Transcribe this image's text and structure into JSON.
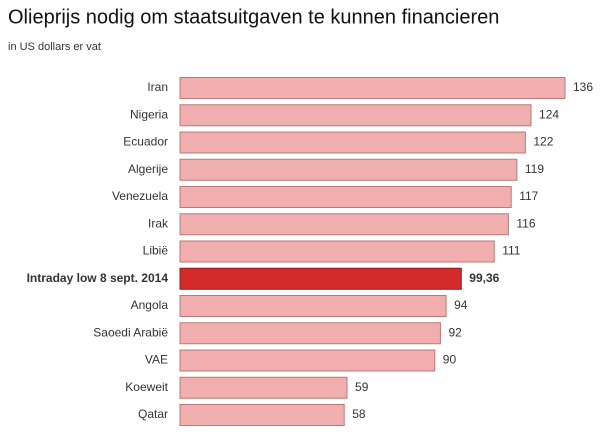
{
  "chart_data": {
    "type": "bar",
    "orientation": "horizontal",
    "title": "Olieprijs nodig om staatsuitgaven te kunnen financieren",
    "subtitle": "in US dollars er vat",
    "categories": [
      "Iran",
      "Nigeria",
      "Ecuador",
      "Algerije",
      "Venezuela",
      "Irak",
      "Libië",
      "Intraday low 8 sept. 2014",
      "Angola",
      "Saoedi Arabië",
      "VAE",
      "Koeweit",
      "Qatar"
    ],
    "values": [
      136,
      124,
      122,
      119,
      117,
      116,
      111,
      99.36,
      94,
      92,
      90,
      59,
      58
    ],
    "value_labels": [
      "136",
      "124",
      "122",
      "119",
      "117",
      "116",
      "111",
      "99,36",
      "94",
      "92",
      "90",
      "59",
      "58"
    ],
    "colors": [
      "#f0aeae",
      "#f0aeae",
      "#f0aeae",
      "#f0aeae",
      "#f0aeae",
      "#f0aeae",
      "#f0aeae",
      "#d42a2a",
      "#f0aeae",
      "#f0aeae",
      "#f0aeae",
      "#f0aeae",
      "#f0aeae"
    ]
  }
}
